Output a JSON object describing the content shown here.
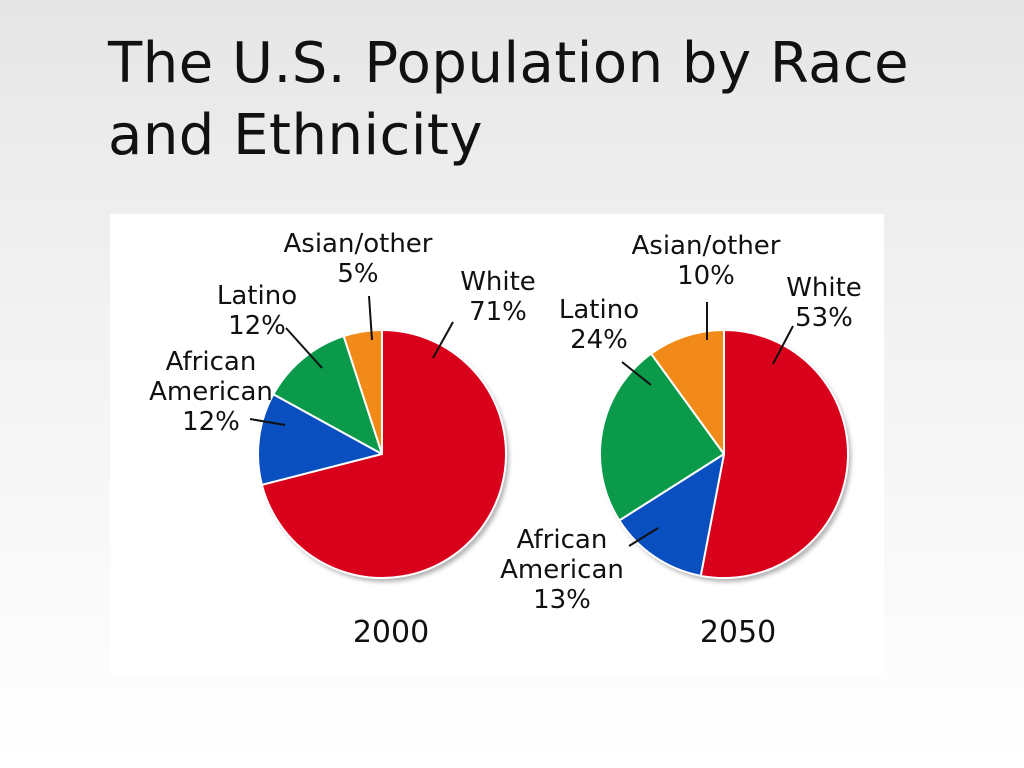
{
  "slide": {
    "title_line1": "The U.S. Population by Race",
    "title_line2": "and Ethnicity"
  },
  "colors": {
    "White": "#d9001b",
    "African American": "#0a4fbf",
    "Latino": "#0a9a4a",
    "Asian/other": "#f28a1a"
  },
  "chart_data": [
    {
      "type": "pie",
      "title": "2000",
      "slices": [
        {
          "name": "White",
          "value": 71,
          "label_lines": [
            "White",
            "71%"
          ]
        },
        {
          "name": "African American",
          "value": 12,
          "label_lines": [
            "African",
            "American",
            "12%"
          ]
        },
        {
          "name": "Latino",
          "value": 12,
          "label_lines": [
            "Latino",
            "12%"
          ]
        },
        {
          "name": "Asian/other",
          "value": 5,
          "label_lines": [
            "Asian/other",
            "5%"
          ]
        }
      ]
    },
    {
      "type": "pie",
      "title": "2050",
      "slices": [
        {
          "name": "White",
          "value": 53,
          "label_lines": [
            "White",
            "53%"
          ]
        },
        {
          "name": "African American",
          "value": 13,
          "label_lines": [
            "African",
            "American",
            "13%"
          ]
        },
        {
          "name": "Latino",
          "value": 24,
          "label_lines": [
            "Latino",
            "24%"
          ]
        },
        {
          "name": "Asian/other",
          "value": 10,
          "label_lines": [
            "Asian/other",
            "10%"
          ]
        }
      ]
    }
  ]
}
